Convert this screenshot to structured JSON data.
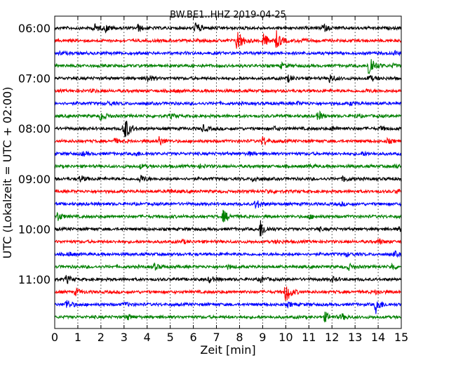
{
  "chart_data": {
    "type": "line",
    "plot_kind": "helicorder (seismogram day plot)",
    "title": "BW.BE1..HHZ 2019-04-25",
    "xlabel": "Zeit  [min]",
    "ylabel": "UTC (Lokalzeit = UTC + 02:00)",
    "xlim": [
      0,
      15
    ],
    "x_ticks": [
      "0",
      "1",
      "2",
      "3",
      "4",
      "5",
      "6",
      "7",
      "8",
      "9",
      "10",
      "11",
      "12",
      "13",
      "14",
      "15"
    ],
    "y_tick_labels": [
      "06:00",
      "07:00",
      "08:00",
      "09:00",
      "10:00",
      "11:00"
    ],
    "grid": "vertical dotted lines at each minute",
    "trace_interval_minutes": 15,
    "color_cycle": [
      "#000000",
      "#ff0000",
      "#0000ff",
      "#008000"
    ],
    "traces": [
      {
        "start": "06:00",
        "events": [
          [
            1.7,
            0.28
          ],
          [
            2.2,
            0.2
          ],
          [
            3.6,
            0.2
          ],
          [
            6.1,
            0.38
          ],
          [
            11.6,
            0.25
          ]
        ]
      },
      {
        "start": "06:15",
        "events": [
          [
            7.9,
            0.85
          ],
          [
            9.0,
            0.55
          ],
          [
            9.6,
            0.55
          ],
          [
            10.6,
            0.12
          ]
        ]
      },
      {
        "start": "06:30",
        "events": [
          [
            0.2,
            0.08
          ],
          [
            14.7,
            0.12
          ]
        ]
      },
      {
        "start": "06:45",
        "events": [
          [
            9.8,
            0.15
          ],
          [
            13.6,
            0.95
          ],
          [
            14.6,
            0.1
          ]
        ]
      },
      {
        "start": "07:00",
        "events": [
          [
            4.0,
            0.25
          ],
          [
            10.1,
            0.2
          ],
          [
            11.9,
            0.28
          ],
          [
            13.6,
            0.2
          ]
        ]
      },
      {
        "start": "07:15",
        "events": [
          [
            1.6,
            0.1
          ],
          [
            5.2,
            0.08
          ],
          [
            13.5,
            0.08
          ]
        ]
      },
      {
        "start": "07:30",
        "events": [
          [
            2.3,
            0.1
          ],
          [
            10.5,
            0.08
          ],
          [
            12.8,
            0.08
          ]
        ]
      },
      {
        "start": "07:45",
        "events": [
          [
            2.0,
            0.3
          ],
          [
            5.0,
            0.12
          ],
          [
            11.4,
            0.3
          ],
          [
            13.0,
            0.08
          ]
        ]
      },
      {
        "start": "08:00",
        "events": [
          [
            3.0,
            0.95
          ],
          [
            6.4,
            0.22
          ],
          [
            9.5,
            0.1
          ],
          [
            12.0,
            0.12
          ],
          [
            14.1,
            0.12
          ]
        ]
      },
      {
        "start": "08:15",
        "events": [
          [
            4.5,
            0.3
          ],
          [
            9.0,
            0.3
          ],
          [
            2.6,
            0.15
          ],
          [
            14.4,
            0.12
          ]
        ]
      },
      {
        "start": "08:30",
        "events": [
          [
            1.2,
            0.12
          ],
          [
            3.5,
            0.15
          ],
          [
            8.4,
            0.1
          ],
          [
            13.3,
            0.1
          ]
        ]
      },
      {
        "start": "08:45",
        "events": [
          [
            3.7,
            0.12
          ],
          [
            6.3,
            0.1
          ],
          [
            11.0,
            0.1
          ],
          [
            14.7,
            0.12
          ]
        ]
      },
      {
        "start": "09:00",
        "events": [
          [
            1.1,
            0.2
          ],
          [
            3.7,
            0.25
          ],
          [
            8.6,
            0.2
          ],
          [
            12.5,
            0.2
          ]
        ]
      },
      {
        "start": "09:15",
        "events": [
          [
            4.9,
            0.12
          ],
          [
            9.2,
            0.12
          ],
          [
            14.8,
            0.15
          ]
        ]
      },
      {
        "start": "09:30",
        "events": [
          [
            8.7,
            0.3
          ],
          [
            12.4,
            0.08
          ]
        ]
      },
      {
        "start": "09:45",
        "events": [
          [
            0.1,
            0.3
          ],
          [
            7.3,
            0.4
          ],
          [
            11.0,
            0.12
          ]
        ]
      },
      {
        "start": "10:00",
        "events": [
          [
            8.9,
            0.6
          ],
          [
            11.4,
            0.1
          ],
          [
            14.9,
            0.12
          ]
        ]
      },
      {
        "start": "10:15",
        "events": [
          [
            5.5,
            0.12
          ],
          [
            9.6,
            0.1
          ],
          [
            14.0,
            0.15
          ]
        ]
      },
      {
        "start": "10:30",
        "events": [
          [
            0.6,
            0.12
          ],
          [
            12.6,
            0.12
          ],
          [
            14.7,
            0.15
          ]
        ]
      },
      {
        "start": "10:45",
        "events": [
          [
            4.3,
            0.2
          ],
          [
            7.5,
            0.12
          ],
          [
            12.7,
            0.2
          ],
          [
            14.6,
            0.2
          ]
        ]
      },
      {
        "start": "11:00",
        "events": [
          [
            0.5,
            0.25
          ],
          [
            6.7,
            0.2
          ],
          [
            8.9,
            0.18
          ],
          [
            12.0,
            0.15
          ]
        ]
      },
      {
        "start": "11:15",
        "events": [
          [
            0.9,
            0.2
          ],
          [
            10.0,
            0.75
          ],
          [
            13.9,
            0.15
          ]
        ]
      },
      {
        "start": "11:30",
        "events": [
          [
            0.5,
            0.35
          ],
          [
            3.0,
            0.12
          ],
          [
            10.1,
            0.12
          ],
          [
            13.9,
            0.55
          ]
        ]
      },
      {
        "start": "11:45",
        "events": [
          [
            3.1,
            0.2
          ],
          [
            11.7,
            0.3
          ],
          [
            12.4,
            0.2
          ]
        ]
      }
    ]
  }
}
